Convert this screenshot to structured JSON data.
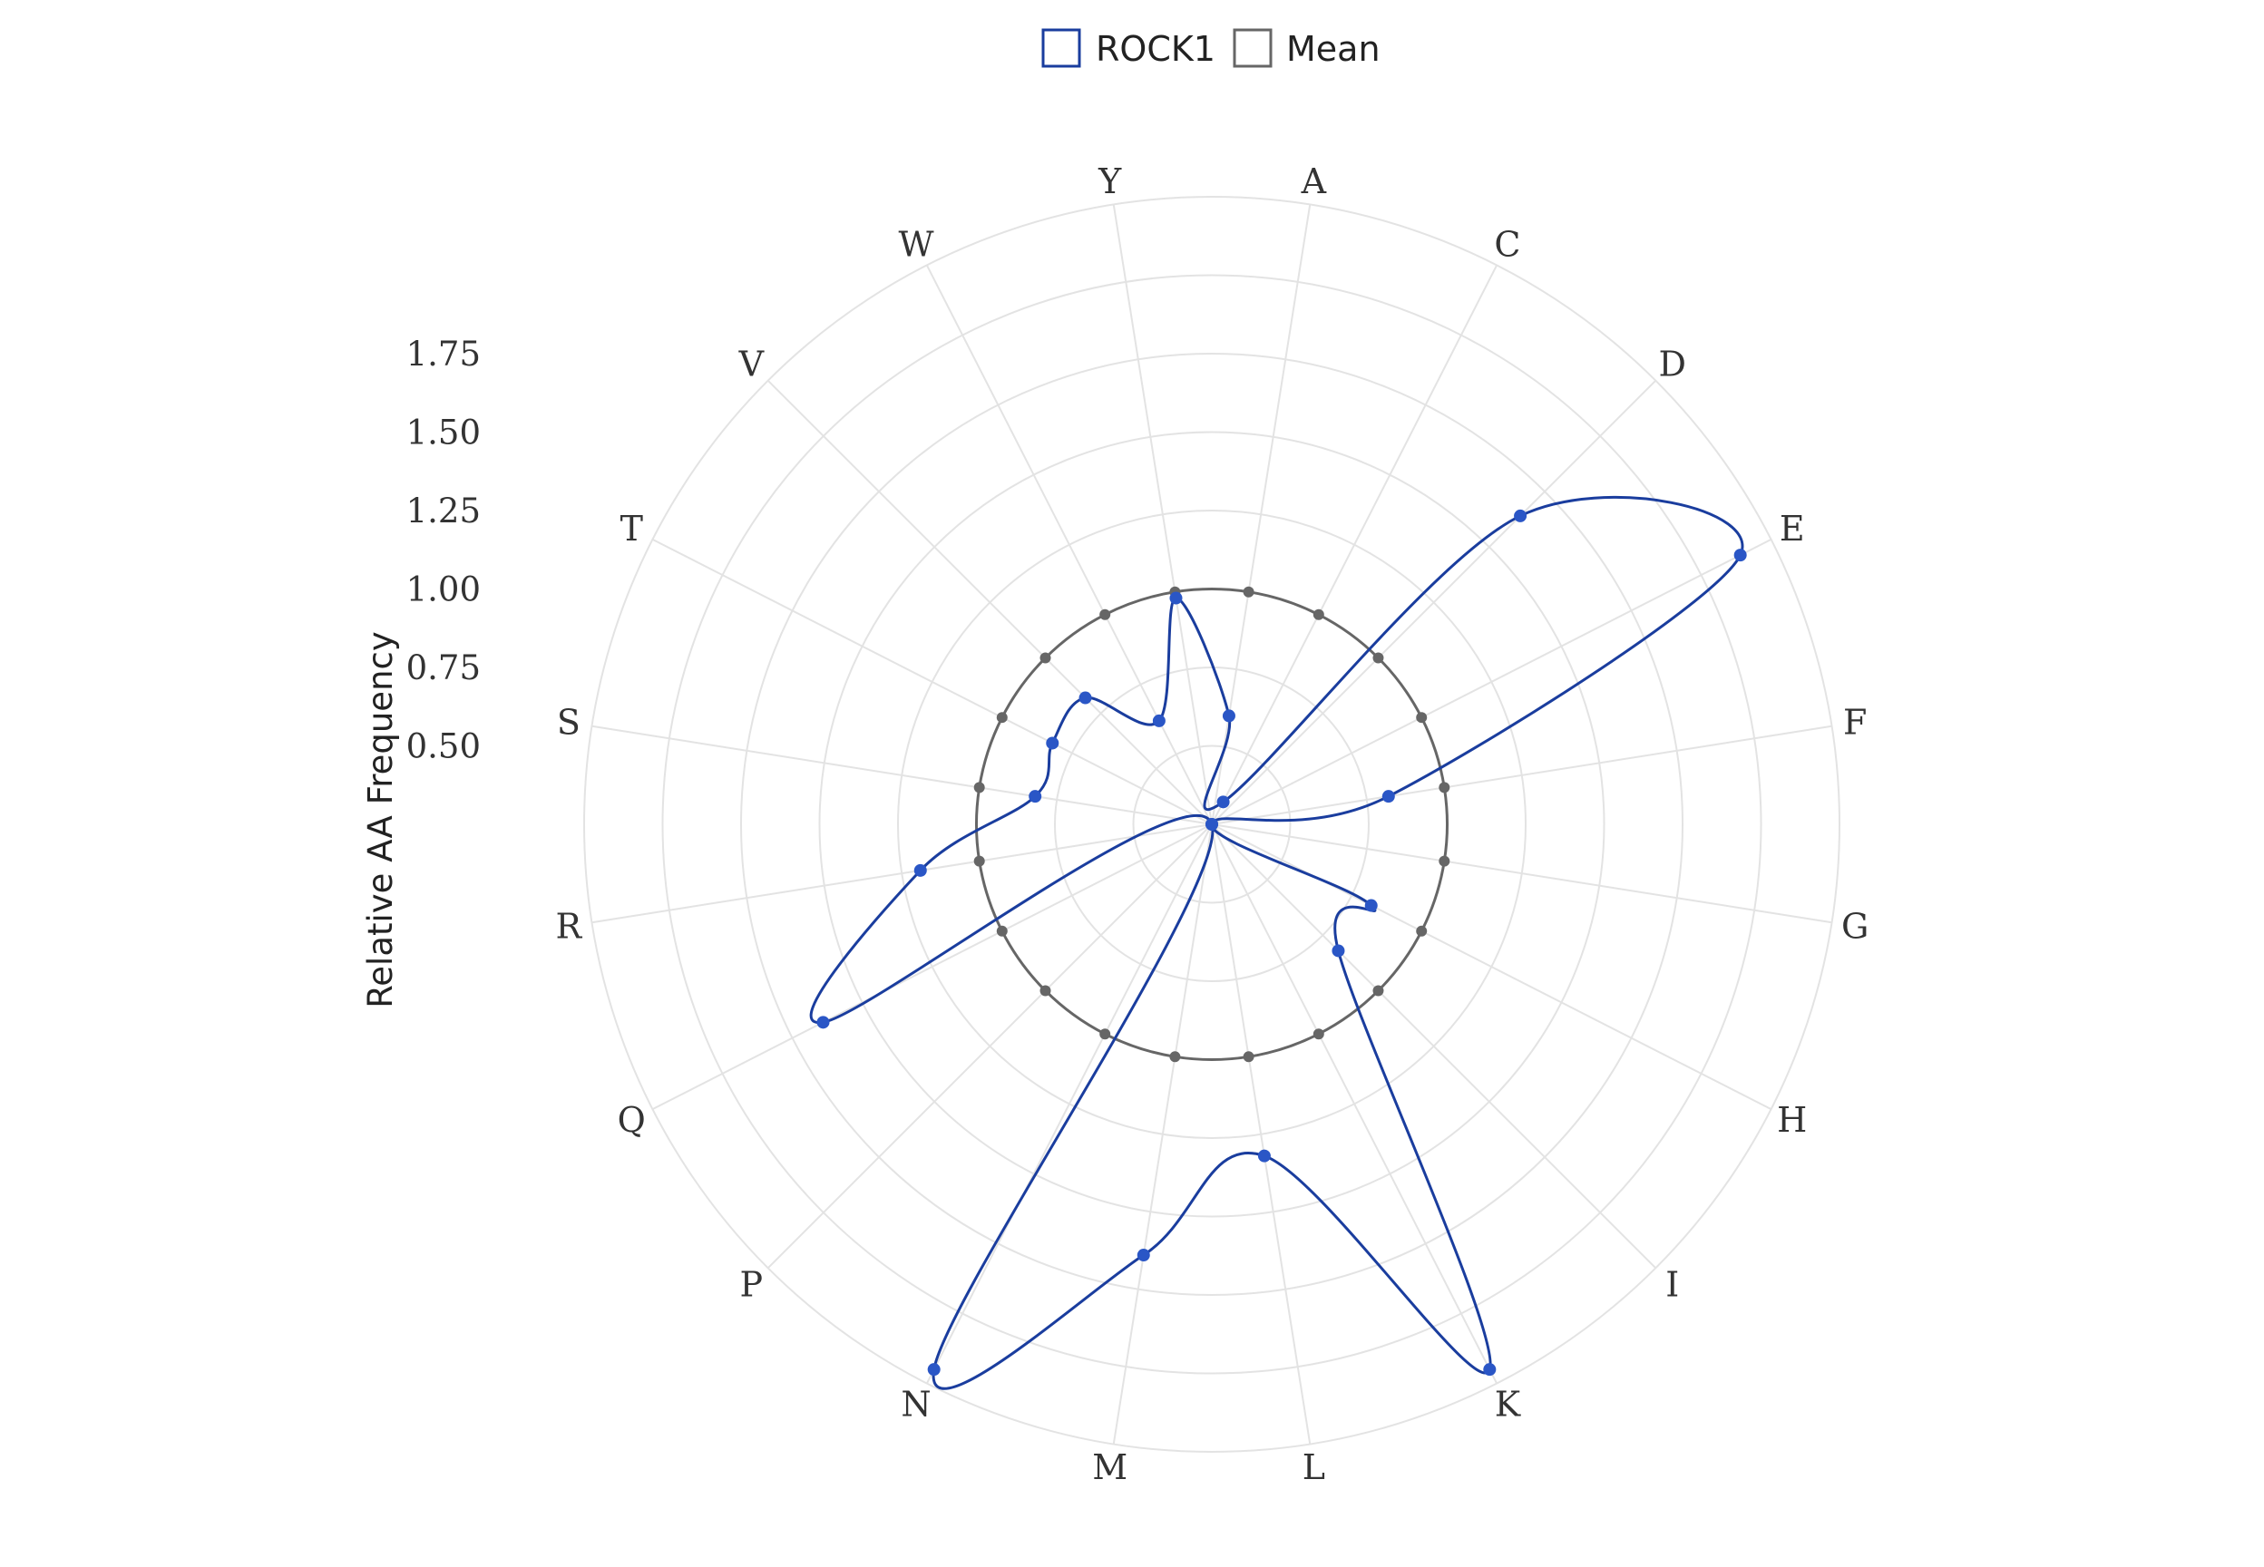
{
  "chart_data": {
    "type": "radar",
    "categories": [
      "A",
      "C",
      "D",
      "E",
      "F",
      "G",
      "H",
      "I",
      "K",
      "L",
      "M",
      "N",
      "P",
      "Q",
      "R",
      "S",
      "T",
      "V",
      "W",
      "Y"
    ],
    "series": [
      {
        "name": "ROCK1",
        "values": [
          0.6,
          0.33,
          1.64,
          2.14,
          0.82,
          0.23,
          0.82,
          0.82,
          2.2,
          1.32,
          1.64,
          2.2,
          0.0,
          1.64,
          1.19,
          0.82,
          0.82,
          0.82,
          0.62,
          0.98
        ],
        "color": "#1a3d9e"
      },
      {
        "name": "Mean",
        "values": [
          1,
          1,
          1,
          1,
          1,
          1,
          1,
          1,
          1,
          1,
          1,
          1,
          1,
          1,
          1,
          1,
          1,
          1,
          1,
          1
        ],
        "color": "#666666"
      }
    ],
    "radial_axis": {
      "title": "Relative AA Frequency",
      "ticks": [
        "0.50",
        "0.75",
        "1.00",
        "1.25",
        "1.50",
        "1.75"
      ],
      "tick_values": [
        0.5,
        0.75,
        1.0,
        1.25,
        1.5,
        1.75
      ],
      "range": [
        0.25,
        2.25
      ]
    },
    "legend_position": "top-center",
    "grid": true,
    "colors": {
      "grid": "#e3e3e3",
      "rock1": "#1a3d9e",
      "rock1_marker": "#2a56c6",
      "mean": "#666666"
    }
  }
}
